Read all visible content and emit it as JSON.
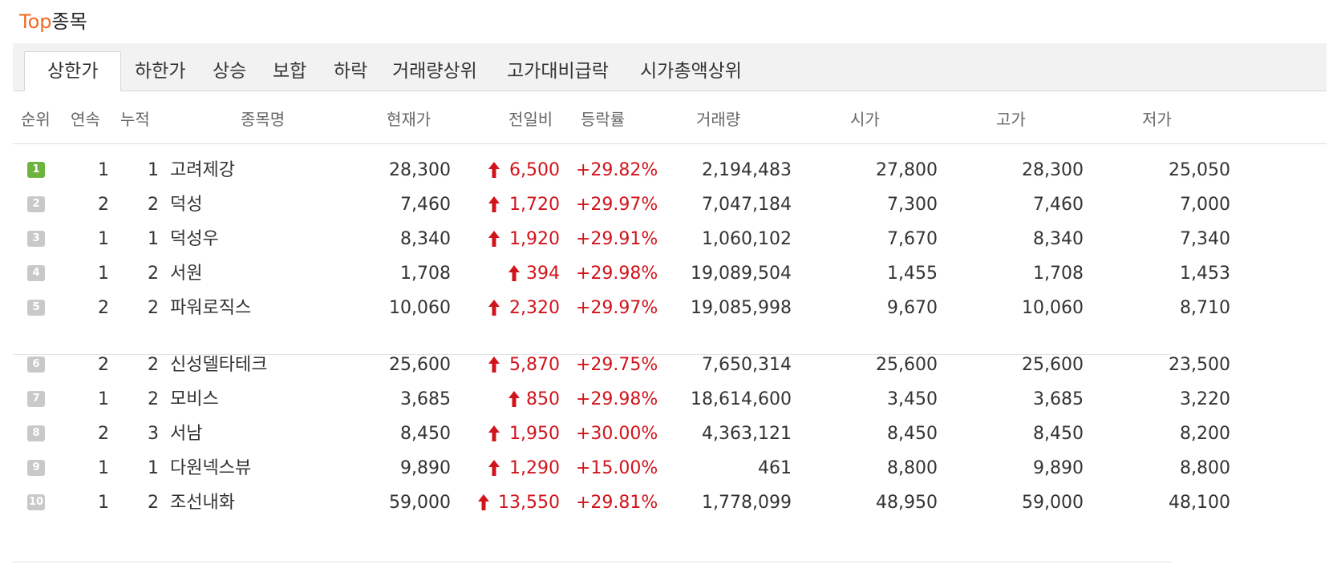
{
  "page": {
    "title_accent": "Top",
    "title_rest": "종목"
  },
  "tabs": [
    {
      "label": "상한가",
      "active": true
    },
    {
      "label": "하한가"
    },
    {
      "label": "상승"
    },
    {
      "label": "보합"
    },
    {
      "label": "하락"
    },
    {
      "label": "거래량상위"
    },
    {
      "label": "고가대비급락"
    },
    {
      "label": "시가총액상위"
    }
  ],
  "columns": {
    "rank": "순위",
    "streak": "연속",
    "cumulative": "누적",
    "name": "종목명",
    "price": "현재가",
    "change": "전일비",
    "rate": "등락률",
    "volume": "거래량",
    "open": "시가",
    "high": "고가",
    "low": "저가"
  },
  "colors": {
    "accent": "#ef6a23",
    "up": "#d1141b",
    "rank1_badge": "#6db33f",
    "rank_badge": "#c9c9c9"
  },
  "rows": [
    {
      "rank": "1",
      "streak": "1",
      "cumulative": "1",
      "name": "고려제강",
      "price": "28,300",
      "change": "6,500",
      "rate": "+29.82%",
      "volume": "2,194,483",
      "open": "27,800",
      "high": "28,300",
      "low": "25,050",
      "direction_icon": "up-arrow-icon"
    },
    {
      "rank": "2",
      "streak": "2",
      "cumulative": "2",
      "name": "덕성",
      "price": "7,460",
      "change": "1,720",
      "rate": "+29.97%",
      "volume": "7,047,184",
      "open": "7,300",
      "high": "7,460",
      "low": "7,000",
      "direction_icon": "up-arrow-icon"
    },
    {
      "rank": "3",
      "streak": "1",
      "cumulative": "1",
      "name": "덕성우",
      "price": "8,340",
      "change": "1,920",
      "rate": "+29.91%",
      "volume": "1,060,102",
      "open": "7,670",
      "high": "8,340",
      "low": "7,340",
      "direction_icon": "up-arrow-icon"
    },
    {
      "rank": "4",
      "streak": "1",
      "cumulative": "2",
      "name": "서원",
      "price": "1,708",
      "change": "394",
      "rate": "+29.98%",
      "volume": "19,089,504",
      "open": "1,455",
      "high": "1,708",
      "low": "1,453",
      "direction_icon": "up-arrow-icon"
    },
    {
      "rank": "5",
      "streak": "2",
      "cumulative": "2",
      "name": "파워로직스",
      "price": "10,060",
      "change": "2,320",
      "rate": "+29.97%",
      "volume": "19,085,998",
      "open": "9,670",
      "high": "10,060",
      "low": "8,710",
      "direction_icon": "up-arrow-icon"
    },
    {
      "rank": "6",
      "streak": "2",
      "cumulative": "2",
      "name": "신성델타테크",
      "price": "25,600",
      "change": "5,870",
      "rate": "+29.75%",
      "volume": "7,650,314",
      "open": "25,600",
      "high": "25,600",
      "low": "23,500",
      "direction_icon": "up-arrow-icon"
    },
    {
      "rank": "7",
      "streak": "1",
      "cumulative": "2",
      "name": "모비스",
      "price": "3,685",
      "change": "850",
      "rate": "+29.98%",
      "volume": "18,614,600",
      "open": "3,450",
      "high": "3,685",
      "low": "3,220",
      "direction_icon": "up-arrow-icon"
    },
    {
      "rank": "8",
      "streak": "2",
      "cumulative": "3",
      "name": "서남",
      "price": "8,450",
      "change": "1,950",
      "rate": "+30.00%",
      "volume": "4,363,121",
      "open": "8,450",
      "high": "8,450",
      "low": "8,200",
      "direction_icon": "up-arrow-icon"
    },
    {
      "rank": "9",
      "streak": "1",
      "cumulative": "1",
      "name": "다원넥스뷰",
      "price": "9,890",
      "change": "1,290",
      "rate": "+15.00%",
      "volume": "461",
      "open": "8,800",
      "high": "9,890",
      "low": "8,800",
      "direction_icon": "up-arrow-icon"
    },
    {
      "rank": "10",
      "streak": "1",
      "cumulative": "2",
      "name": "조선내화",
      "price": "59,000",
      "change": "13,550",
      "rate": "+29.81%",
      "volume": "1,778,099",
      "open": "48,950",
      "high": "59,000",
      "low": "48,100",
      "direction_icon": "up-arrow-icon"
    }
  ]
}
